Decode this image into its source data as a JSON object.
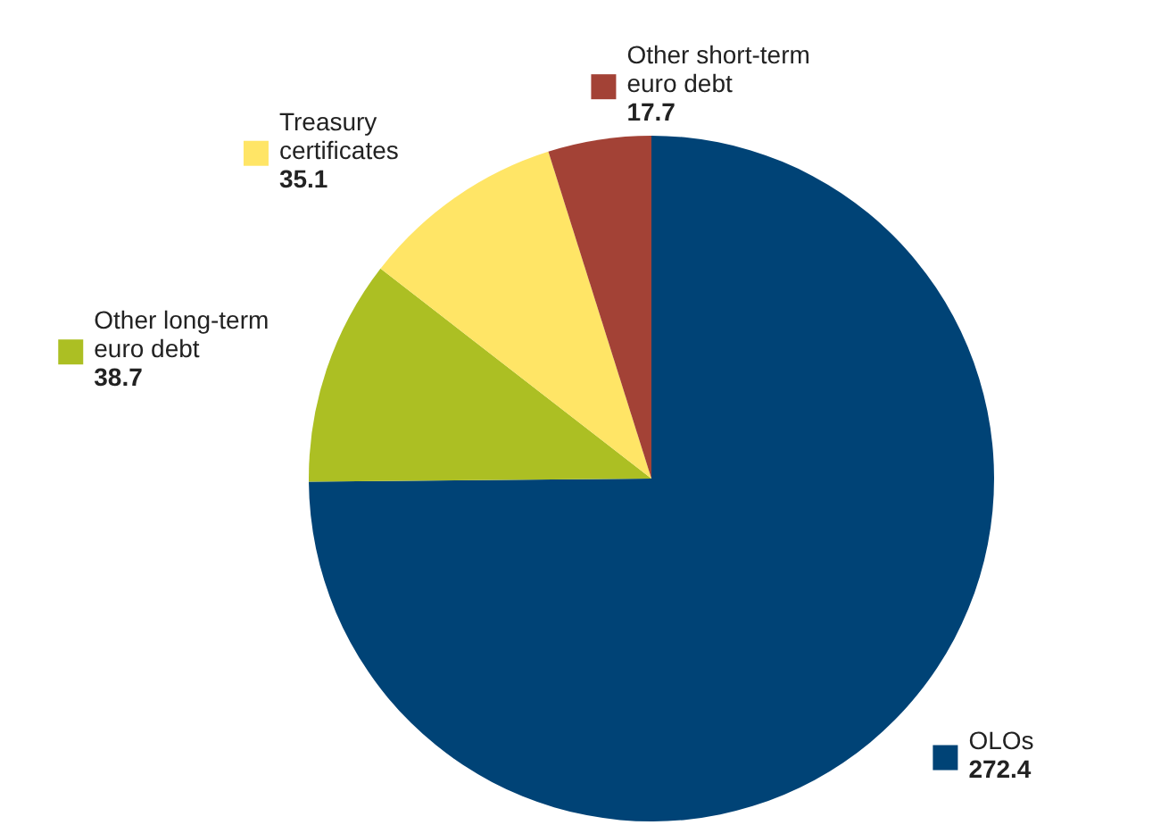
{
  "chart_data": {
    "type": "pie",
    "categories": [
      "OLOs",
      "Other long-term euro debt",
      "Treasury certificates",
      "Other short-term euro debt"
    ],
    "values": [
      272.4,
      38.7,
      35.1,
      17.7
    ],
    "colors": [
      "#004376",
      "#acbf23",
      "#ffe566",
      "#a34236"
    ],
    "data_labels": true
  }
}
